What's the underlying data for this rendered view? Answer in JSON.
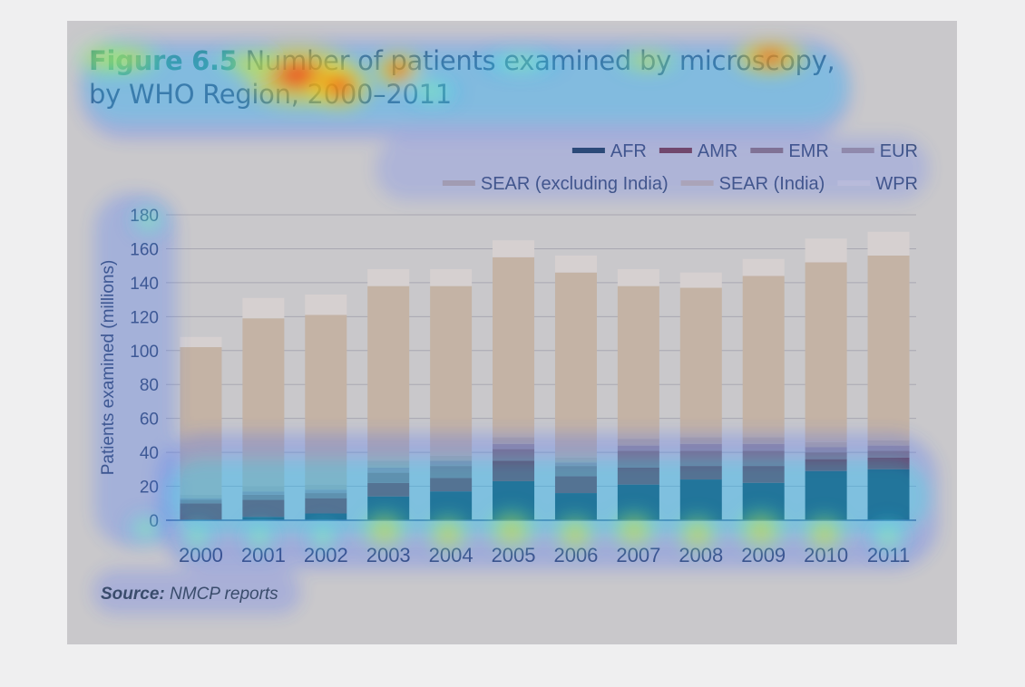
{
  "figure": {
    "label": "Figure 6.5",
    "title_line1": "Number of patients examined by microscopy,",
    "title_line2": "by WHO Region, 2000–2011",
    "source_label": "Source:",
    "source_text": "NMCP reports"
  },
  "chart_data": {
    "type": "bar",
    "stacked": true,
    "ylabel": "Patients examined (millions)",
    "xlabel": "",
    "ylim": [
      0,
      180
    ],
    "yticks": [
      0,
      20,
      40,
      60,
      80,
      100,
      120,
      140,
      160,
      180
    ],
    "grid": true,
    "legend_position": "top-right",
    "categories": [
      "2000",
      "2001",
      "2002",
      "2003",
      "2004",
      "2005",
      "2006",
      "2007",
      "2008",
      "2009",
      "2010",
      "2011"
    ],
    "series": [
      {
        "name": "AFR",
        "color": "#1f3d4e",
        "values": [
          0,
          2,
          4,
          14,
          17,
          23,
          16,
          21,
          24,
          22,
          29,
          30
        ]
      },
      {
        "name": "AMR",
        "color": "#7a3a40",
        "values": [
          10,
          10,
          9,
          8,
          8,
          12,
          10,
          10,
          8,
          10,
          7,
          7
        ]
      },
      {
        "name": "EMR",
        "color": "#8d7274",
        "values": [
          2,
          3,
          3,
          6,
          7,
          7,
          6,
          10,
          9,
          9,
          4,
          4
        ]
      },
      {
        "name": "EUR",
        "color": "#a08f95",
        "values": [
          1,
          2,
          2,
          3,
          3,
          3,
          2,
          3,
          4,
          4,
          3,
          3
        ]
      },
      {
        "name": "SEAR (excluding India)",
        "color": "#b8a89c",
        "values": [
          2,
          3,
          3,
          4,
          3,
          4,
          3,
          4,
          4,
          4,
          3,
          3
        ]
      },
      {
        "name": "SEAR (India)",
        "color": "#c4b3a5",
        "values": [
          87,
          99,
          100,
          103,
          100,
          106,
          109,
          90,
          88,
          95,
          106,
          109
        ]
      },
      {
        "name": "WPR",
        "color": "#d6d0d0",
        "values": [
          6,
          12,
          12,
          10,
          10,
          10,
          10,
          10,
          9,
          10,
          14,
          14
        ]
      }
    ]
  }
}
